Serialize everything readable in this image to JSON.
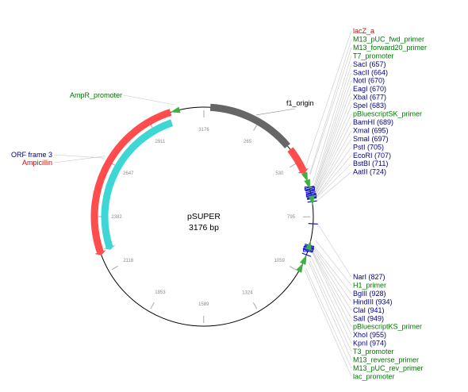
{
  "plasmid": {
    "name": "pSUPER",
    "size_text": "3176 bp",
    "length": 3176
  },
  "colors": {
    "red": "#ff4d4d",
    "cyan": "#3fd6d6",
    "gray": "#666666",
    "green_arrow": "#3cb043",
    "blue_site": "#1a1acc",
    "label_red": "#dd0000",
    "label_green": "#007700",
    "label_blue": "#000080",
    "label_black": "#000000",
    "leader": "#c8c8c8"
  },
  "ticks": [
    "3176",
    "265",
    "530",
    "795",
    "1059",
    "1324",
    "1589",
    "1853",
    "2118",
    "2382",
    "2647",
    "2911"
  ],
  "features": [
    {
      "name": "Ampicillin",
      "type": "arc",
      "color": "red",
      "start": 2200,
      "end": 3020,
      "track": "outer",
      "arrow": "start"
    },
    {
      "name": "ORF frame 3",
      "type": "arc",
      "color": "cyan",
      "start": 2210,
      "end": 3010,
      "track": "inner",
      "arrow": "start"
    },
    {
      "name": "f1_origin",
      "type": "arc",
      "color": "gray",
      "start": 30,
      "end": 440,
      "track": "outer",
      "arrow": "none"
    },
    {
      "name": "lacZ_a",
      "type": "arc",
      "color": "red",
      "start": 460,
      "end": 590,
      "track": "outer",
      "arrow": "end"
    }
  ],
  "labels_top": [
    {
      "text": "lacZ_a",
      "color": "label_red"
    },
    {
      "text": "M13_pUC_fwd_primer",
      "color": "label_green"
    },
    {
      "text": "M13_forward20_primer",
      "color": "label_green"
    },
    {
      "text": "T7_promoter",
      "color": "label_green"
    },
    {
      "text": "SacI (657)",
      "color": "label_blue"
    },
    {
      "text": "SacII (664)",
      "color": "label_blue"
    },
    {
      "text": "NotI (670)",
      "color": "label_blue"
    },
    {
      "text": "EagI (670)",
      "color": "label_blue"
    },
    {
      "text": "XbaI (677)",
      "color": "label_blue"
    },
    {
      "text": "SpeI (683)",
      "color": "label_blue"
    },
    {
      "text": "pBluescriptSK_primer",
      "color": "label_green"
    },
    {
      "text": "BamHI (689)",
      "color": "label_blue"
    },
    {
      "text": "XmaI (695)",
      "color": "label_blue"
    },
    {
      "text": "SmaI (697)",
      "color": "label_blue"
    },
    {
      "text": "PstI (705)",
      "color": "label_blue"
    },
    {
      "text": "EcoRI (707)",
      "color": "label_blue"
    },
    {
      "text": "BstBI (711)",
      "color": "label_blue"
    },
    {
      "text": "AatII (724)",
      "color": "label_blue"
    }
  ],
  "labels_bottom": [
    {
      "text": "NarI (827)",
      "color": "label_blue"
    },
    {
      "text": "H1_primer",
      "color": "label_green"
    },
    {
      "text": "BglII (928)",
      "color": "label_blue"
    },
    {
      "text": "HindIII (934)",
      "color": "label_blue"
    },
    {
      "text": "ClaI (941)",
      "color": "label_blue"
    },
    {
      "text": "SalI (949)",
      "color": "label_blue"
    },
    {
      "text": "pBluescriptKS_primer",
      "color": "label_green"
    },
    {
      "text": "XhoI (955)",
      "color": "label_blue"
    },
    {
      "text": "KpnI (974)",
      "color": "label_blue"
    },
    {
      "text": "T3_promoter",
      "color": "label_green"
    },
    {
      "text": "M13_reverse_primer",
      "color": "label_green"
    },
    {
      "text": "M13_pUC_rev_primer",
      "color": "label_green"
    },
    {
      "text": "lac_promoter",
      "color": "label_green"
    }
  ],
  "labels_left": [
    {
      "text": "AmpR_promoter",
      "color": "label_green"
    },
    {
      "text": "ORF frame 3",
      "color": "label_blue"
    },
    {
      "text": "Ampicillin",
      "color": "label_red"
    }
  ],
  "labels_floating": [
    {
      "text": "f1_origin",
      "color": "label_black"
    }
  ]
}
